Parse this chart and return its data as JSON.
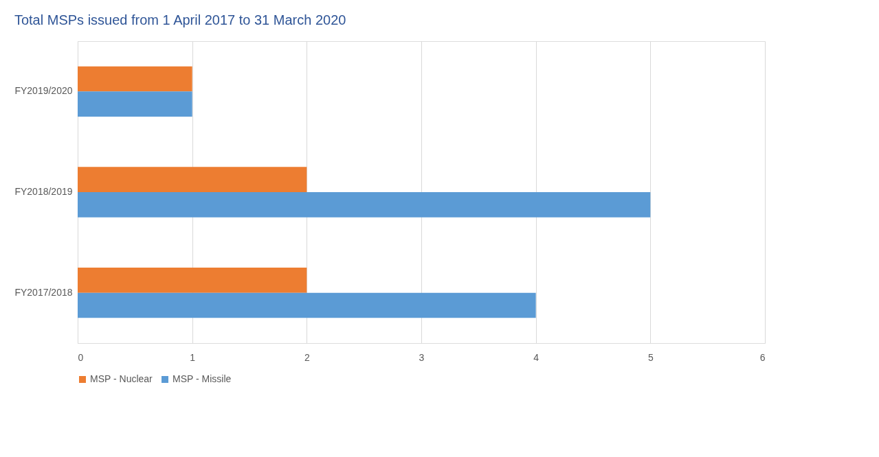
{
  "chart_data": {
    "type": "bar",
    "orientation": "horizontal",
    "title": "Total MSPs issued from 1 April 2017 to 31 March 2020",
    "categories": [
      "FY2019/2020",
      "FY2018/2019",
      "FY2017/2018"
    ],
    "series": [
      {
        "name": "MSP - Nuclear",
        "color": "#ed7d31",
        "values": [
          1,
          2,
          2
        ]
      },
      {
        "name": "MSP - Missile",
        "color": "#5b9bd5",
        "values": [
          1,
          5,
          4
        ]
      }
    ],
    "xlim": [
      0,
      6
    ],
    "xticks": [
      0,
      1,
      2,
      3,
      4,
      5,
      6
    ],
    "grid": "x",
    "legend": "bottom"
  }
}
